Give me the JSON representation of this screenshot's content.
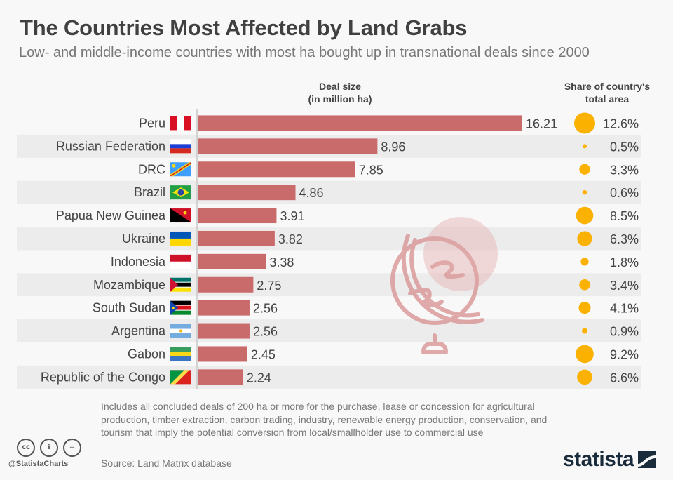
{
  "header": {
    "title": "The Countries Most Affected by Land Grabs",
    "subtitle": "Low- and middle-income countries with most ha bought up in transnational deals since 2000"
  },
  "columns": {
    "deal_size_line1": "Deal size",
    "deal_size_line2": "(in million ha)",
    "share_line1": "Share of country's",
    "share_line2": "total area"
  },
  "colors": {
    "bar": "#c96b6b",
    "bubble": "#fbb100",
    "row_alt": "#ececec",
    "watermark": "#d98f8f"
  },
  "chart_data": {
    "type": "bar",
    "orientation": "horizontal",
    "title": "The Countries Most Affected by Land Grabs",
    "subtitle": "Low- and middle-income countries with most ha bought up in transnational deals since 2000",
    "xlabel": "Deal size (in million ha)",
    "categories": [
      "Peru",
      "Russian Federation",
      "DRC",
      "Brazil",
      "Papua New Guinea",
      "Ukraine",
      "Indonesia",
      "Mozambique",
      "South Sudan",
      "Argentina",
      "Gabon",
      "Republic of the Congo"
    ],
    "flags": [
      "peru-flag",
      "russia-flag",
      "drc-flag",
      "brazil-flag",
      "png-flag",
      "ukraine-flag",
      "indonesia-flag",
      "mozambique-flag",
      "south-sudan-flag",
      "argentina-flag",
      "gabon-flag",
      "congo-flag"
    ],
    "series": [
      {
        "name": "Deal size (in million ha)",
        "type": "bar",
        "values": [
          16.21,
          8.96,
          7.85,
          4.86,
          3.91,
          3.82,
          3.38,
          2.75,
          2.56,
          2.56,
          2.45,
          2.24
        ],
        "labels": [
          "16.21",
          "8.96",
          "7.85",
          "4.86",
          "3.91",
          "3.82",
          "3.38",
          "2.75",
          "2.56",
          "2.56",
          "2.45",
          "2.24"
        ]
      },
      {
        "name": "Share of country's total area",
        "type": "bubble",
        "unit": "%",
        "values": [
          12.6,
          0.5,
          3.3,
          0.6,
          8.5,
          6.3,
          1.8,
          3.4,
          4.1,
          0.9,
          9.2,
          6.6
        ],
        "labels": [
          "12.6%",
          "0.5%",
          "3.3%",
          "0.6%",
          "8.5%",
          "6.3%",
          "1.8%",
          "3.4%",
          "4.1%",
          "0.9%",
          "9.2%",
          "6.6%"
        ]
      }
    ],
    "xlim": [
      0,
      16.21
    ],
    "grid": false,
    "legend": "none"
  },
  "footer": {
    "note": "Includes all concluded deals of 200 ha or more for the purchase, lease or concession for agricultural production, timber extraction, carbon trading, industry, renewable energy production, conservation, and tourism that imply the potential conversion from local/smallholder use to commercial use",
    "source": "Source: Land Matrix database",
    "handle": "@StatistaCharts",
    "license_icons": [
      "cc-icon",
      "attribution-icon",
      "no-derivatives-icon"
    ],
    "cc_glyphs": [
      "cc",
      "i",
      "="
    ],
    "logo_text": "statista"
  }
}
